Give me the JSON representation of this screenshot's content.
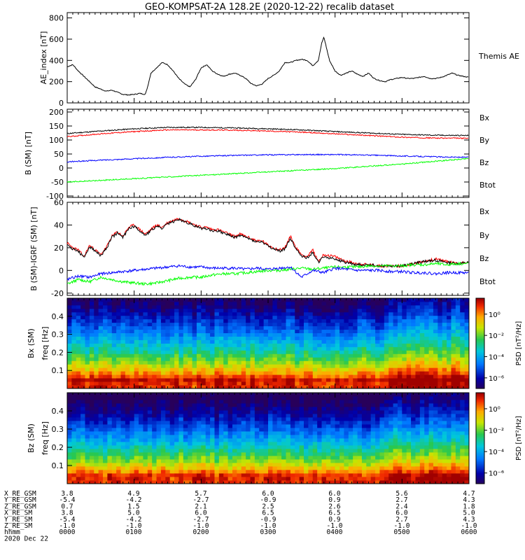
{
  "title": "GEO-KOMPSAT-2A 128.2E (2020-12-22) recalib dataset",
  "chart_data": [
    {
      "type": "line",
      "panel": "ae",
      "ylabel": "AE_index [nT]",
      "ylim": [
        0,
        850
      ],
      "yticks": [
        0,
        200,
        400,
        600,
        800
      ],
      "legend": [
        "Themis AE"
      ],
      "series": [
        {
          "name": "Themis AE",
          "color": "#000000",
          "x": [
            0,
            5,
            10,
            15,
            20,
            25,
            30,
            35,
            40,
            50,
            55,
            60,
            65,
            70,
            72,
            75,
            80,
            85,
            90,
            95,
            100,
            105,
            110,
            115,
            120,
            125,
            130,
            135,
            140,
            145,
            150,
            155,
            160,
            165,
            170,
            175,
            180,
            185,
            190,
            195,
            200,
            205,
            210,
            215,
            220,
            225,
            228,
            230,
            235,
            240,
            245,
            250,
            255,
            260,
            265,
            270,
            275,
            280,
            285,
            290,
            295,
            300,
            305,
            310,
            315,
            320,
            325,
            330,
            335,
            340,
            345,
            350,
            355,
            360
          ],
          "y": [
            340,
            360,
            300,
            250,
            200,
            150,
            130,
            110,
            120,
            80,
            75,
            80,
            90,
            80,
            150,
            280,
            330,
            380,
            360,
            300,
            230,
            180,
            150,
            220,
            330,
            360,
            300,
            270,
            250,
            270,
            280,
            260,
            230,
            180,
            160,
            180,
            230,
            260,
            300,
            380,
            380,
            400,
            410,
            400,
            350,
            400,
            560,
            620,
            400,
            300,
            260,
            280,
            300,
            270,
            250,
            280,
            230,
            210,
            200,
            220,
            230,
            240,
            230,
            230,
            240,
            250,
            230,
            230,
            240,
            260,
            280,
            260,
            250,
            240
          ]
        }
      ]
    },
    {
      "type": "line",
      "panel": "b_sm",
      "ylabel": "B (SM) [nT]",
      "ylim": [
        -105,
        210
      ],
      "yticks": [
        -100,
        -50,
        0,
        50,
        100,
        150,
        200
      ],
      "legend": [
        "Bx",
        "By",
        "Bz",
        "Btot"
      ],
      "series": [
        {
          "name": "Btot",
          "color": "#000000",
          "x": [
            0,
            30,
            60,
            90,
            120,
            150,
            180,
            210,
            240,
            270,
            300,
            330,
            360
          ],
          "y": [
            123,
            132,
            140,
            145,
            145,
            143,
            140,
            136,
            130,
            125,
            120,
            117,
            116
          ]
        },
        {
          "name": "Bz",
          "color": "#ff0000",
          "x": [
            0,
            30,
            60,
            90,
            120,
            150,
            180,
            210,
            240,
            270,
            300,
            330,
            360
          ],
          "y": [
            112,
            122,
            130,
            136,
            136,
            135,
            132,
            128,
            122,
            116,
            110,
            107,
            106
          ]
        },
        {
          "name": "Bx",
          "color": "#0000ff",
          "x": [
            0,
            30,
            60,
            90,
            120,
            150,
            180,
            210,
            240,
            270,
            300,
            330,
            360
          ],
          "y": [
            22,
            28,
            33,
            38,
            42,
            45,
            47,
            48,
            48,
            46,
            43,
            40,
            38
          ]
        },
        {
          "name": "By",
          "color": "#00ff00",
          "x": [
            0,
            30,
            60,
            90,
            120,
            150,
            180,
            210,
            240,
            270,
            300,
            330,
            360
          ],
          "y": [
            -50,
            -44,
            -38,
            -32,
            -26,
            -20,
            -14,
            -8,
            -2,
            6,
            14,
            24,
            34
          ]
        }
      ]
    },
    {
      "type": "line",
      "panel": "b_sm_igrf",
      "ylabel": "B (SM)-IGRF (SM) [nT]",
      "ylim": [
        -22,
        60
      ],
      "yticks": [
        -20,
        0,
        20,
        40,
        60
      ],
      "legend": [
        "Bx",
        "By",
        "Bz",
        "Btot"
      ],
      "series": [
        {
          "name": "Bz",
          "color": "#ff0000",
          "x": [
            0,
            5,
            10,
            15,
            20,
            25,
            30,
            35,
            40,
            45,
            50,
            55,
            60,
            65,
            70,
            75,
            80,
            85,
            90,
            95,
            100,
            105,
            110,
            115,
            120,
            125,
            130,
            135,
            140,
            145,
            150,
            155,
            160,
            165,
            170,
            175,
            180,
            185,
            190,
            195,
            200,
            205,
            210,
            215,
            220,
            225,
            230,
            240,
            250,
            260,
            270,
            280,
            290,
            300,
            310,
            320,
            330,
            340,
            350,
            360
          ],
          "y": [
            24,
            20,
            18,
            12,
            22,
            18,
            14,
            20,
            30,
            34,
            30,
            38,
            40,
            36,
            32,
            36,
            40,
            38,
            42,
            44,
            46,
            44,
            42,
            40,
            38,
            38,
            36,
            36,
            34,
            32,
            30,
            32,
            30,
            28,
            26,
            26,
            22,
            20,
            18,
            20,
            30,
            20,
            14,
            12,
            18,
            8,
            14,
            12,
            8,
            6,
            5,
            4,
            4,
            4,
            6,
            8,
            10,
            8,
            6,
            8
          ]
        },
        {
          "name": "Btot",
          "color": "#000000",
          "x": [
            0,
            5,
            10,
            15,
            20,
            25,
            30,
            35,
            40,
            45,
            50,
            55,
            60,
            65,
            70,
            75,
            80,
            85,
            90,
            95,
            100,
            105,
            110,
            115,
            120,
            125,
            130,
            135,
            140,
            145,
            150,
            155,
            160,
            165,
            170,
            175,
            180,
            185,
            190,
            195,
            200,
            205,
            210,
            215,
            220,
            225,
            230,
            240,
            250,
            260,
            270,
            280,
            290,
            300,
            310,
            320,
            330,
            340,
            350,
            360
          ],
          "y": [
            22,
            19,
            17,
            11,
            21,
            17,
            13,
            19,
            29,
            33,
            29,
            37,
            39,
            35,
            31,
            35,
            39,
            37,
            41,
            43,
            45,
            43,
            41,
            39,
            37,
            37,
            35,
            35,
            33,
            31,
            29,
            31,
            29,
            27,
            25,
            25,
            21,
            19,
            17,
            19,
            28,
            19,
            13,
            11,
            16,
            7,
            12,
            10,
            7,
            5,
            5,
            4,
            4,
            4,
            6,
            8,
            9,
            7,
            6,
            7
          ]
        },
        {
          "name": "By",
          "color": "#00ff00",
          "x": [
            0,
            10,
            20,
            30,
            40,
            50,
            60,
            70,
            80,
            90,
            100,
            110,
            120,
            130,
            140,
            150,
            160,
            170,
            180,
            190,
            200,
            210,
            220,
            230,
            240,
            250,
            260,
            270,
            280,
            290,
            300,
            310,
            320,
            330,
            340,
            350,
            360
          ],
          "y": [
            -12,
            -8,
            -10,
            -6,
            -8,
            -10,
            -11,
            -12,
            -11,
            -9,
            -7,
            -6,
            -6,
            -4,
            -3,
            -3,
            -2,
            -1,
            0,
            0,
            1,
            2,
            1,
            2,
            3,
            3,
            3,
            4,
            4,
            4,
            4,
            5,
            5,
            6,
            5,
            6,
            6
          ]
        },
        {
          "name": "Bx",
          "color": "#0000ff",
          "x": [
            0,
            10,
            20,
            30,
            40,
            50,
            60,
            70,
            80,
            90,
            100,
            110,
            120,
            130,
            140,
            150,
            160,
            170,
            180,
            190,
            200,
            210,
            220,
            230,
            240,
            250,
            260,
            270,
            280,
            290,
            300,
            310,
            320,
            330,
            340,
            350,
            360
          ],
          "y": [
            -8,
            -5,
            -6,
            -3,
            -2,
            -1,
            0,
            1,
            2,
            3,
            4,
            3,
            3,
            2,
            2,
            2,
            1,
            2,
            1,
            2,
            3,
            -6,
            0,
            -2,
            2,
            1,
            0,
            0,
            0,
            -1,
            -1,
            -2,
            -2,
            -3,
            -2,
            -2,
            -2
          ]
        }
      ]
    },
    {
      "type": "heatmap",
      "panel": "bx_spec",
      "ylabel": "Bx (SM) freq [Hz]",
      "ylim": [
        0,
        0.5
      ],
      "yticks": [
        0.1,
        0.2,
        0.3,
        0.4
      ],
      "colorbar_label": "PSD [nT²/Hz]",
      "colorbar_ticks": [
        "10⁰",
        "10⁻²",
        "10⁻⁴",
        "10⁻⁶"
      ],
      "clim_log10": [
        -7,
        1.5
      ]
    },
    {
      "type": "heatmap",
      "panel": "bz_spec",
      "ylabel": "Bz (SM) freq [Hz]",
      "ylim": [
        0,
        0.5
      ],
      "yticks": [
        0.1,
        0.2,
        0.3,
        0.4
      ],
      "colorbar_label": "PSD [nT²/Hz]",
      "colorbar_ticks": [
        "10⁰",
        "10⁻²",
        "10⁻⁴",
        "10⁻⁶"
      ],
      "clim_log10": [
        -7,
        1.5
      ]
    }
  ],
  "orbit_table": {
    "rows": [
      {
        "label": "X_RE_GSM",
        "values": [
          "3.8",
          "4.9",
          "5.7",
          "6.0",
          "6.0",
          "5.6",
          "4.7"
        ]
      },
      {
        "label": "Y_RE_GSM",
        "values": [
          "-5.4",
          "-4.2",
          "-2.7",
          "-0.9",
          "0.9",
          "2.7",
          "4.3"
        ]
      },
      {
        "label": "Z_RE_GSM",
        "values": [
          "0.7",
          "1.5",
          "2.1",
          "2.5",
          "2.6",
          "2.4",
          "1.8"
        ]
      },
      {
        "label": "X_RE_SM",
        "values": [
          "3.8",
          "5.0",
          "6.0",
          "6.5",
          "6.5",
          "6.0",
          "5.0"
        ]
      },
      {
        "label": "Y_RE_SM",
        "values": [
          "-5.4",
          "-4.2",
          "-2.7",
          "-0.9",
          "0.9",
          "2.7",
          "4.3"
        ]
      },
      {
        "label": "Z_RE_SM",
        "values": [
          "-1.0",
          "-1.0",
          "-1.0",
          "-1.0",
          "-1.0",
          "-1.0",
          "-1.0"
        ]
      },
      {
        "label": "hhmm",
        "values": [
          "0000",
          "0100",
          "0200",
          "0300",
          "0400",
          "0500",
          "0600"
        ]
      }
    ],
    "date": "2020 Dec 22"
  }
}
